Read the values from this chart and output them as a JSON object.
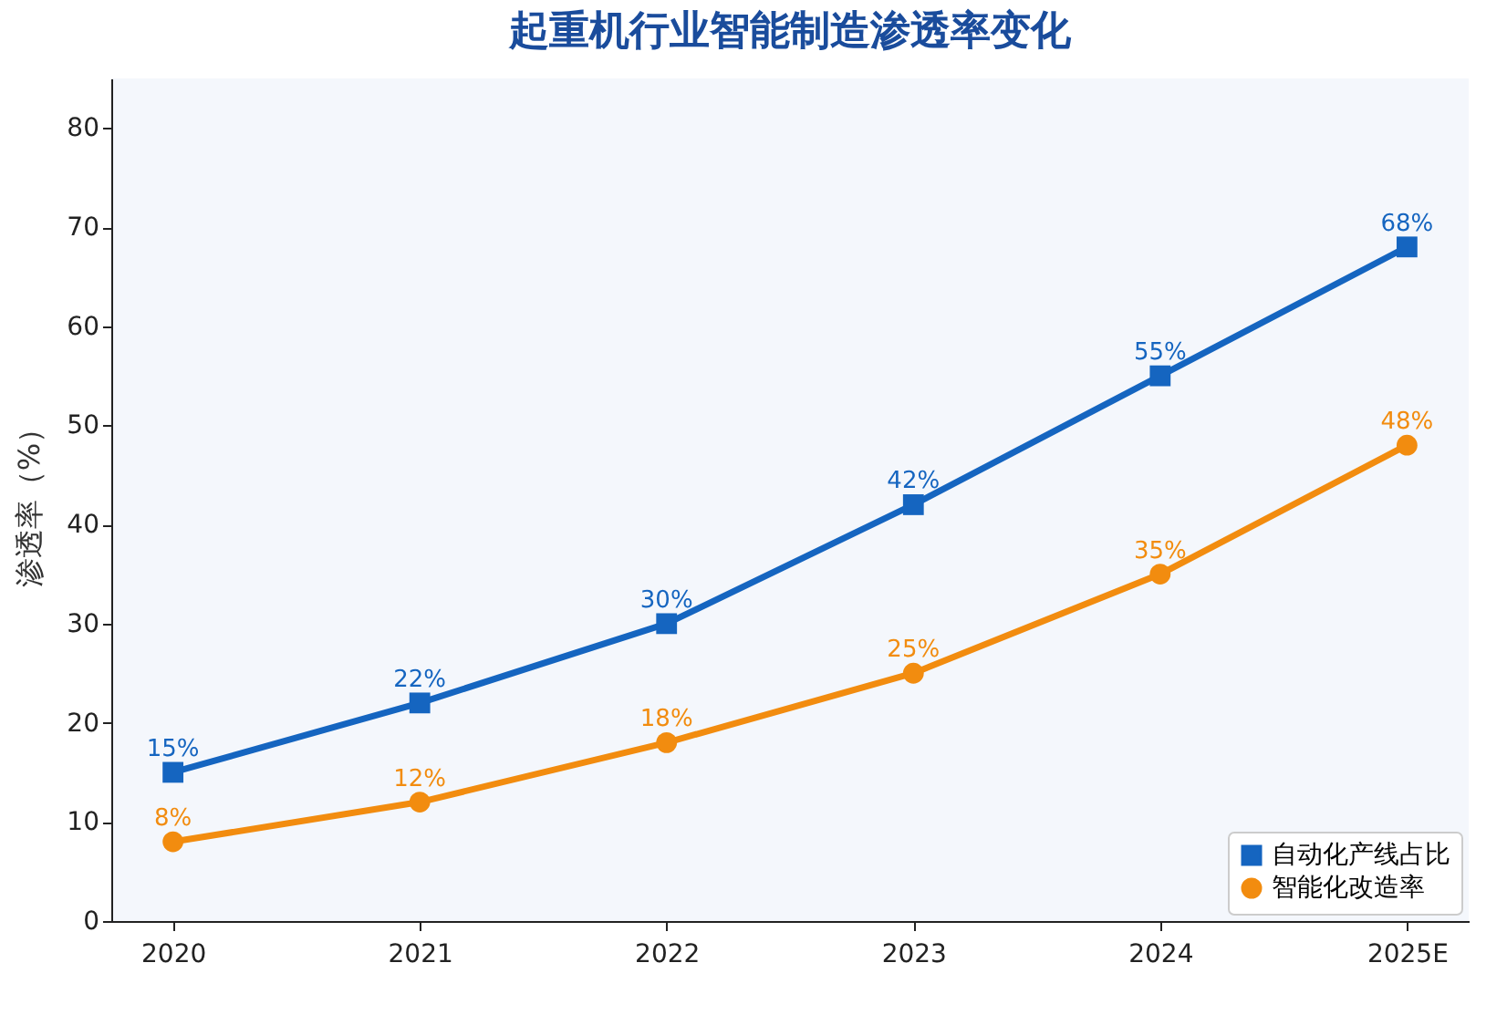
{
  "chart_data": {
    "type": "line",
    "title": "起重机行业智能制造渗透率变化",
    "ylabel": "渗透率（%）",
    "categories": [
      "2020",
      "2021",
      "2022",
      "2023",
      "2024",
      "2025E"
    ],
    "series": [
      {
        "name": "自动化产线占比",
        "color": "#1565c0",
        "marker": "square",
        "values": [
          15,
          22,
          30,
          42,
          55,
          68
        ],
        "value_labels": [
          "15%",
          "22%",
          "30%",
          "42%",
          "55%",
          "68%"
        ]
      },
      {
        "name": "智能化改造率",
        "color": "#f28c0f",
        "marker": "circle",
        "values": [
          8,
          12,
          18,
          25,
          35,
          48
        ],
        "value_labels": [
          "8%",
          "12%",
          "18%",
          "25%",
          "35%",
          "48%"
        ]
      }
    ],
    "ylim": [
      0,
      85
    ],
    "yticks": [
      0,
      10,
      20,
      30,
      40,
      50,
      60,
      70,
      80
    ],
    "grid": false,
    "legend": "bottom right",
    "line_style": "solid"
  }
}
